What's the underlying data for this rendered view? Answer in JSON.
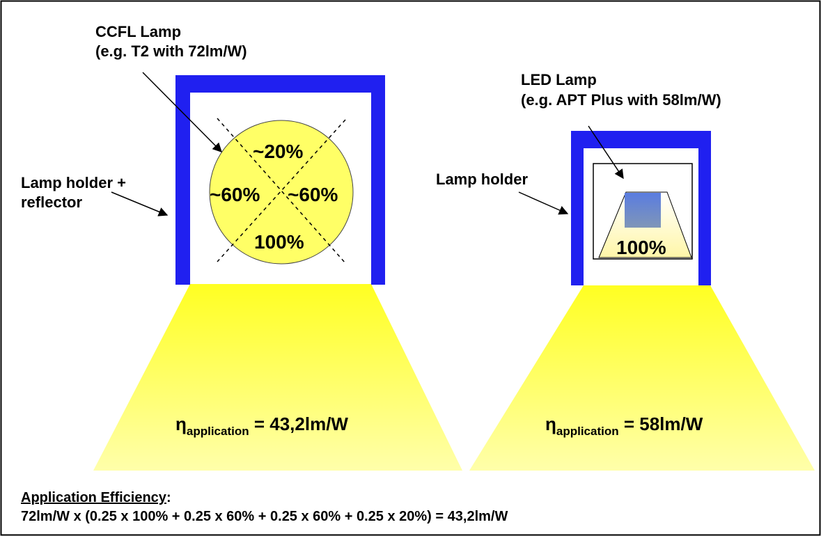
{
  "colors": {
    "frame": "#2020f0",
    "light": "#ffff33",
    "lamp_fill": "#ffff66",
    "led_chip_top": "#5a7ce0",
    "led_chip_bottom": "#7f96b8",
    "led_glow": "#fffbd6"
  },
  "ccfl": {
    "title": "CCFL Lamp",
    "subtitle": "(e.g. T2 with 72lm/W)",
    "holder_label_line1": "Lamp holder +",
    "holder_label_line2": "reflector",
    "pct_top": "~20%",
    "pct_left": "~60%",
    "pct_right": "~60%",
    "pct_bottom": "100%",
    "eta_symbol": "η",
    "eta_sub": "application",
    "eta_value": "= 43,2lm/W"
  },
  "led": {
    "title": "LED Lamp",
    "subtitle": "(e.g. APT Plus with  58lm/W)",
    "holder_label": "Lamp holder",
    "pct": "100%",
    "eta_symbol": "η",
    "eta_sub": "application",
    "eta_value": "= 58lm/W"
  },
  "footer": {
    "heading": "Application Efficiency",
    "heading_colon": ":",
    "formula": "72lm/W x (0.25 x 100% + 0.25 x 60% + 0.25 x 60% + 0.25 x 20%) = 43,2lm/W"
  }
}
